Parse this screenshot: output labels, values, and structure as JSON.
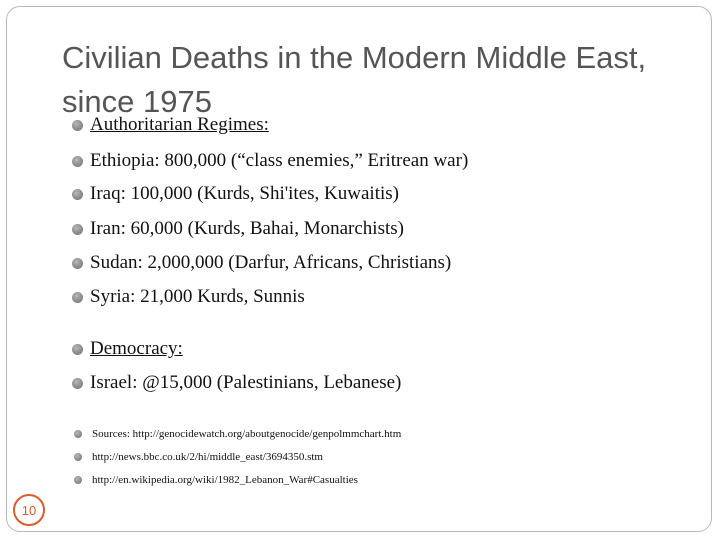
{
  "slide": {
    "title": "Civilian Deaths in the Modern Middle East, since 1975",
    "page_number": "10",
    "bullets": [
      "Authoritarian Regimes:",
      "Ethiopia: 800,000 (“class enemies,” Eritrean war)",
      "Iraq: 100,000 (Kurds, Shi'ites, Kuwaitis)",
      "Iran: 60,000 (Kurds, Bahai, Monarchists)",
      "Sudan: 2,000,000 (Darfur, Africans, Christians)",
      "Syria: 21,000 Kurds, Sunnis",
      "Democracy:",
      "Israel: @15,000 (Palestinians, Lebanese)"
    ],
    "sources": [
      "Sources: http://genocidewatch.org/aboutgenocide/genpolmmchart.htm",
      "http://news.bbc.co.uk/2/hi/middle_east/3694350.stm",
      "http://en.wikipedia.org/wiki/1982_Lebanon_War#Casualties"
    ]
  },
  "colors": {
    "title": "#555555",
    "text": "#111111",
    "bullet": "#8a8a8a",
    "accent": "#e05a2a",
    "border": "#b9b9b9"
  }
}
